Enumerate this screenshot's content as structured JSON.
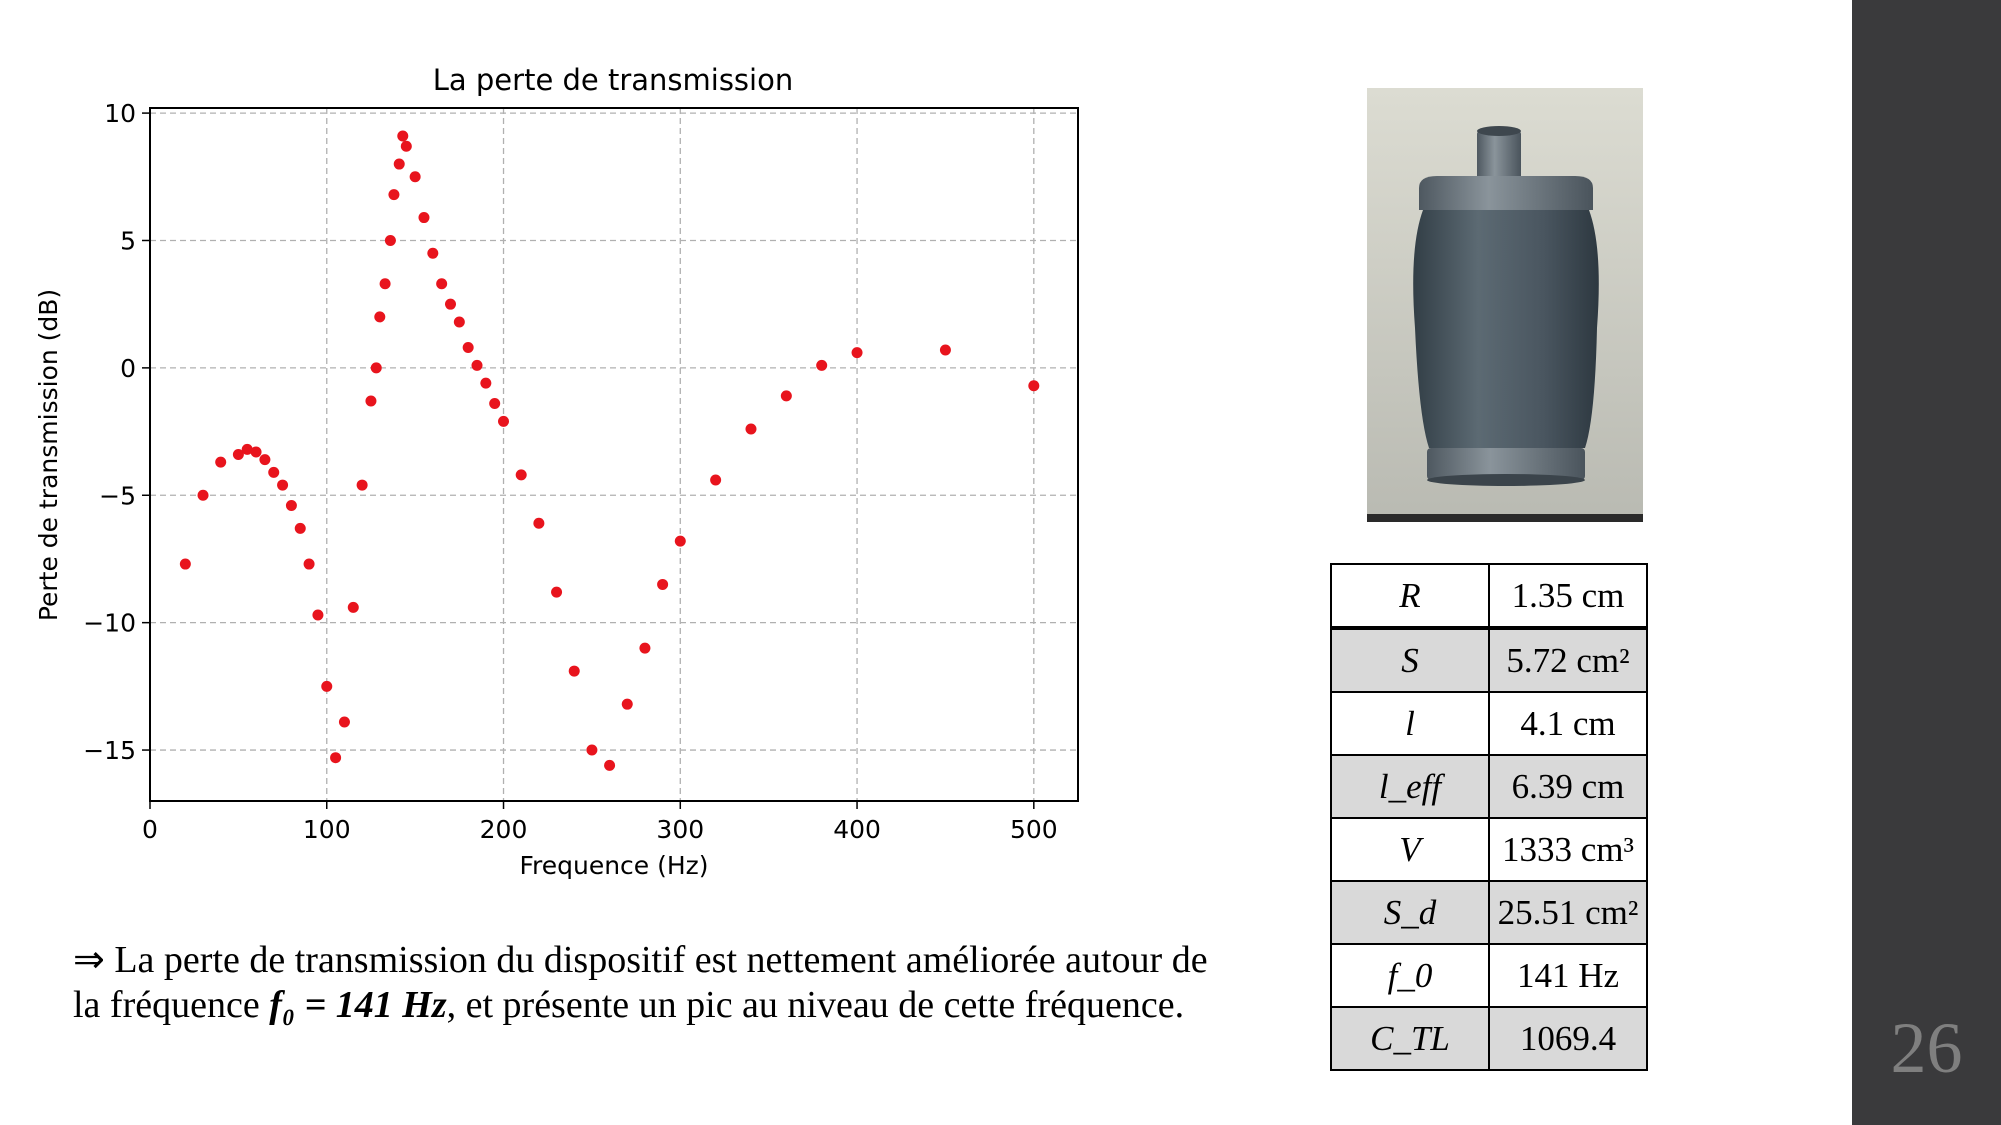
{
  "chart_data": {
    "type": "scatter",
    "title": "La perte de transmission",
    "xlabel": "Frequence (Hz)",
    "ylabel": "Perte de transmission (dB)",
    "xlim": [
      0,
      525
    ],
    "ylim": [
      -17,
      10.2
    ],
    "xticks": [
      0,
      100,
      200,
      300,
      400,
      500
    ],
    "yticks": [
      10,
      5,
      0,
      -5,
      -10,
      -15
    ],
    "xtick_labels": [
      "0",
      "100",
      "200",
      "300",
      "400",
      "500"
    ],
    "ytick_labels": [
      "10",
      "5",
      "0",
      "−5",
      "−10",
      "−15"
    ],
    "grid": true,
    "marker_color": "#e8141d",
    "points": [
      [
        20,
        -7.7
      ],
      [
        30,
        -5.0
      ],
      [
        40,
        -3.7
      ],
      [
        50,
        -3.4
      ],
      [
        55,
        -3.2
      ],
      [
        60,
        -3.3
      ],
      [
        65,
        -3.6
      ],
      [
        70,
        -4.1
      ],
      [
        75,
        -4.6
      ],
      [
        80,
        -5.4
      ],
      [
        85,
        -6.3
      ],
      [
        90,
        -7.7
      ],
      [
        95,
        -9.7
      ],
      [
        100,
        -12.5
      ],
      [
        105,
        -15.3
      ],
      [
        110,
        -13.9
      ],
      [
        115,
        -9.4
      ],
      [
        120,
        -4.6
      ],
      [
        125,
        -1.3
      ],
      [
        128,
        0.0
      ],
      [
        130,
        2.0
      ],
      [
        133,
        3.3
      ],
      [
        136,
        5.0
      ],
      [
        138,
        6.8
      ],
      [
        141,
        8.0
      ],
      [
        143,
        9.1
      ],
      [
        145,
        8.7
      ],
      [
        150,
        7.5
      ],
      [
        155,
        5.9
      ],
      [
        160,
        4.5
      ],
      [
        165,
        3.3
      ],
      [
        170,
        2.5
      ],
      [
        175,
        1.8
      ],
      [
        180,
        0.8
      ],
      [
        185,
        0.1
      ],
      [
        190,
        -0.6
      ],
      [
        195,
        -1.4
      ],
      [
        200,
        -2.1
      ],
      [
        210,
        -4.2
      ],
      [
        220,
        -6.1
      ],
      [
        230,
        -8.8
      ],
      [
        240,
        -11.9
      ],
      [
        250,
        -15.0
      ],
      [
        260,
        -15.6
      ],
      [
        270,
        -13.2
      ],
      [
        280,
        -11.0
      ],
      [
        290,
        -8.5
      ],
      [
        300,
        -6.8
      ],
      [
        320,
        -4.4
      ],
      [
        340,
        -2.4
      ],
      [
        360,
        -1.1
      ],
      [
        380,
        0.1
      ],
      [
        400,
        0.6
      ],
      [
        450,
        0.7
      ],
      [
        500,
        -0.7
      ]
    ]
  },
  "photo": {
    "icon": "muffler-device-photo"
  },
  "params_table": {
    "rows": [
      {
        "symbol": "R",
        "value": "1.35 cm"
      },
      {
        "symbol": "S",
        "value": "5.72 cm²"
      },
      {
        "symbol": "l",
        "value": "4.1 cm"
      },
      {
        "symbol": "l_eff",
        "value": "6.39 cm"
      },
      {
        "symbol": "V",
        "value": "1333 cm³"
      },
      {
        "symbol": "S_d",
        "value": "25.51 cm²"
      },
      {
        "symbol": "f_0",
        "value": "141 Hz"
      },
      {
        "symbol": "C_TL",
        "value": "1069.4"
      }
    ]
  },
  "conclusion": {
    "part1": "⇒ La perte de transmission du dispositif est nettement améliorée autour de la fréquence ",
    "formula": "f₀ = 141 Hz",
    "part2": ", et présente un pic au niveau de cette fréquence."
  },
  "page_number": "26",
  "colors": {
    "sidebar": "#3a3a3c",
    "page_number": "#7f7f7f",
    "table_shade": "#d9d9d9"
  }
}
